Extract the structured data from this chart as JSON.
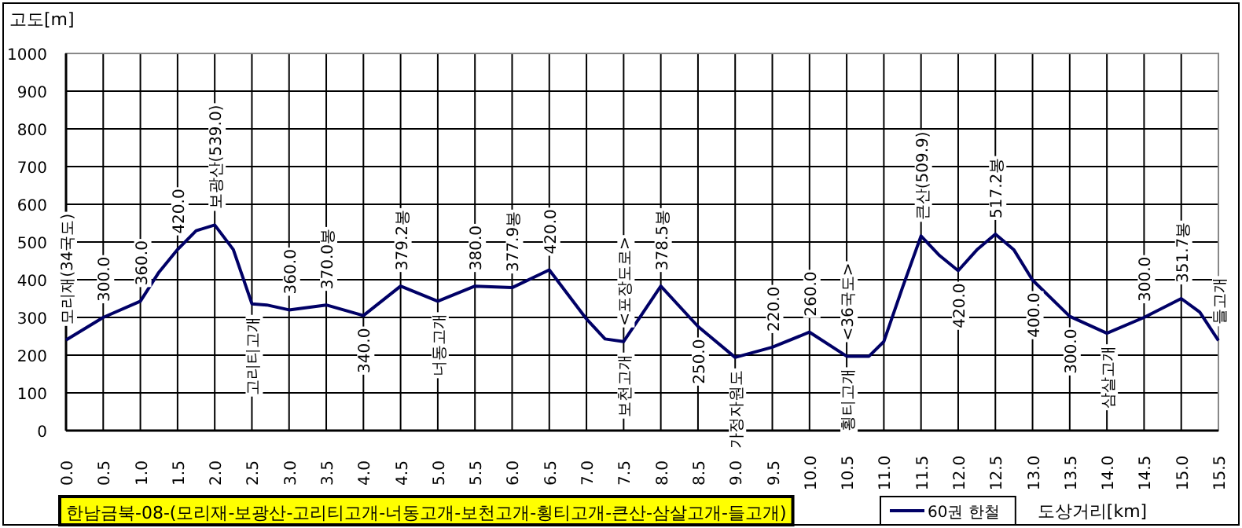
{
  "chart_data": {
    "type": "line",
    "title": "한남금북-08-(모리재-보광산-고리티고개-너동고개-보천고개-횡티고개-큰산-삼살고개-들고개)",
    "ylabel": "고도[m]",
    "xlabel": "도상거리[km]",
    "x": [
      0,
      0.5,
      1,
      1.25,
      1.5,
      1.75,
      2,
      2.25,
      2.5,
      2.7,
      3,
      3.5,
      4,
      4.5,
      5,
      5.5,
      6,
      6.5,
      7,
      7.25,
      7.5,
      8,
      8.5,
      9,
      9.5,
      10,
      10.5,
      10.8,
      11,
      11.25,
      11.5,
      11.75,
      12,
      12.25,
      12.5,
      12.75,
      13,
      13.5,
      14,
      14.5,
      15,
      15.25,
      15.5
    ],
    "series": [
      {
        "name": "60권 한철",
        "color": "#000066",
        "values": [
          240,
          300,
          343,
          420,
          480,
          530,
          545,
          480,
          336,
          333,
          320,
          333,
          305,
          383,
          343,
          383,
          379,
          426,
          296,
          243,
          236,
          383,
          276,
          194,
          221,
          261,
          197,
          197,
          236,
          379,
          516,
          464,
          424,
          479,
          521,
          479,
          399,
          303,
          258,
          300,
          350,
          314,
          239
        ]
      }
    ],
    "xlim": [
      0,
      15.5
    ],
    "xticks": [
      {
        "value": 0,
        "label": "0.0"
      },
      {
        "value": 0.5,
        "label": "0.5"
      },
      {
        "value": 1,
        "label": "1.0"
      },
      {
        "value": 1.5,
        "label": "1.5"
      },
      {
        "value": 2,
        "label": "2.0"
      },
      {
        "value": 2.5,
        "label": "2.5"
      },
      {
        "value": 3,
        "label": "3.0"
      },
      {
        "value": 3.5,
        "label": "3.5"
      },
      {
        "value": 4,
        "label": "4.0"
      },
      {
        "value": 4.5,
        "label": "4.5"
      },
      {
        "value": 5,
        "label": "5.0"
      },
      {
        "value": 5.5,
        "label": "5.5"
      },
      {
        "value": 6,
        "label": "6.0"
      },
      {
        "value": 6.5,
        "label": "6.5"
      },
      {
        "value": 7,
        "label": "7.0"
      },
      {
        "value": 7.5,
        "label": "7.5"
      },
      {
        "value": 8,
        "label": "8.0"
      },
      {
        "value": 8.5,
        "label": "8.5"
      },
      {
        "value": 9,
        "label": "9.0"
      },
      {
        "value": 9.5,
        "label": "9.5"
      },
      {
        "value": 10,
        "label": "10.0"
      },
      {
        "value": 10.5,
        "label": "10.5"
      },
      {
        "value": 11,
        "label": "11.0"
      },
      {
        "value": 11.5,
        "label": "11.5"
      },
      {
        "value": 12,
        "label": "12.0"
      },
      {
        "value": 12.5,
        "label": "12.5"
      },
      {
        "value": 13,
        "label": "13.0"
      },
      {
        "value": 13.5,
        "label": "13.5"
      },
      {
        "value": 14,
        "label": "14.0"
      },
      {
        "value": 14.5,
        "label": "14.5"
      },
      {
        "value": 15,
        "label": "15.0"
      },
      {
        "value": 15.5,
        "label": "15.5"
      }
    ],
    "ylim": [
      0,
      1000
    ],
    "yticks": [
      0,
      100,
      200,
      300,
      400,
      500,
      600,
      700,
      800,
      900,
      1000
    ],
    "grid": true,
    "legend": "bottom",
    "marker": "none",
    "annotations": [
      {
        "text": "모리재(34국도)",
        "x": 0,
        "y": 240
      },
      {
        "text": "300.0",
        "x": 0.5,
        "y": 300
      },
      {
        "text": "360.0",
        "x": 1,
        "y": 343
      },
      {
        "text": "420.0",
        "x": 1.5,
        "y": 480
      },
      {
        "text": "보광산(539.0)",
        "x": 2,
        "y": 545
      },
      {
        "text": "360.0",
        "x": 3,
        "y": 320
      },
      {
        "text": "370.0봉",
        "x": 3.5,
        "y": 333
      },
      {
        "text": "379.2봉",
        "x": 4.5,
        "y": 383
      },
      {
        "text": "380.0",
        "x": 5.5,
        "y": 383
      },
      {
        "text": "377.9봉",
        "x": 6,
        "y": 379
      },
      {
        "text": "420.0",
        "x": 6.5,
        "y": 426
      },
      {
        "text": "<포장도로>",
        "x": 7.5,
        "y": 236
      },
      {
        "text": "378.5봉",
        "x": 8,
        "y": 383
      },
      {
        "text": "220.0",
        "x": 9.5,
        "y": 221
      },
      {
        "text": "260.0",
        "x": 10,
        "y": 261
      },
      {
        "text": "<36국도>",
        "x": 10.5,
        "y": 197
      },
      {
        "text": "큰산(509.9)",
        "x": 11.5,
        "y": 516
      },
      {
        "text": "517.2봉",
        "x": 12.5,
        "y": 521
      },
      {
        "text": "300.0",
        "x": 14.5,
        "y": 300
      },
      {
        "text": "351.7봉",
        "x": 15,
        "y": 350
      },
      {
        "text": "들고개",
        "x": 15.5,
        "y": 239
      },
      {
        "text": "고리티고개",
        "x": 2.5,
        "y": 336
      },
      {
        "text": "340.0",
        "x": 4,
        "y": 305
      },
      {
        "text": "너동고개",
        "x": 5,
        "y": 343
      },
      {
        "text": "보천고개",
        "x": 7.5,
        "y": 236
      },
      {
        "text": "250.0",
        "x": 8.5,
        "y": 276
      },
      {
        "text": "가정자원도",
        "x": 9,
        "y": 194
      },
      {
        "text": "횡티고개",
        "x": 10.5,
        "y": 197
      },
      {
        "text": "420.0",
        "x": 12,
        "y": 424
      },
      {
        "text": "400.0",
        "x": 13,
        "y": 399
      },
      {
        "text": "300.0",
        "x": 13.5,
        "y": 303
      },
      {
        "text": "삼살고개",
        "x": 14,
        "y": 258
      }
    ]
  }
}
